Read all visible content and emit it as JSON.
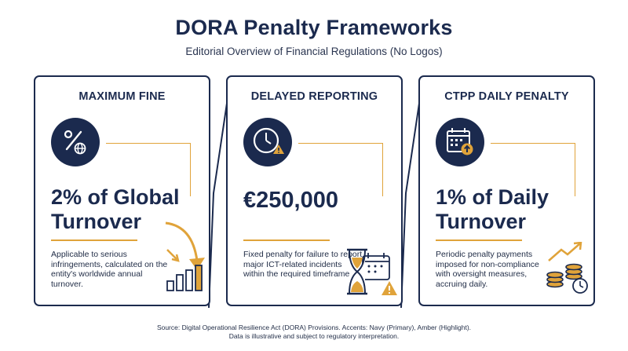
{
  "header": {
    "title": "DORA Penalty Frameworks",
    "subtitle": "Editorial Overview of Financial Regulations (No Logos)"
  },
  "cards": [
    {
      "title": "MAXIMUM FINE",
      "headline_line1": "2% of Global",
      "headline_line2": "Turnover",
      "description": "Applicable to serious infringements, calculated on the entity's worldwide annual turnover.",
      "icon": "percent-globe-icon",
      "decoration": "bar-chart-down-arrow-icon"
    },
    {
      "title": "DELAYED REPORTING",
      "headline_line1": "€250,000",
      "headline_line2": "",
      "description": "Fixed penalty for failure to report major ICT-related incidents within the required timeframe.",
      "icon": "clock-warning-icon",
      "decoration": "hourglass-calendar-warning-icon"
    },
    {
      "title": "CTPP DAILY PENALTY",
      "headline_line1": "1% of Daily",
      "headline_line2": "Turnover",
      "description": "Periodic penalty payments imposed for non-compliance with oversight measures, accruing daily.",
      "icon": "calendar-up-icon",
      "decoration": "coins-trend-clock-icon"
    }
  ],
  "footer": {
    "line1": "Source: Digital Operational Resilience Act (DORA) Provisions. Accents: Navy (Primary), Amber (Highlight).",
    "line2": "Data is illustrative and subject to regulatory interpretation."
  },
  "colors": {
    "navy": "#1b2a4e",
    "amber": "#e0a33a"
  }
}
